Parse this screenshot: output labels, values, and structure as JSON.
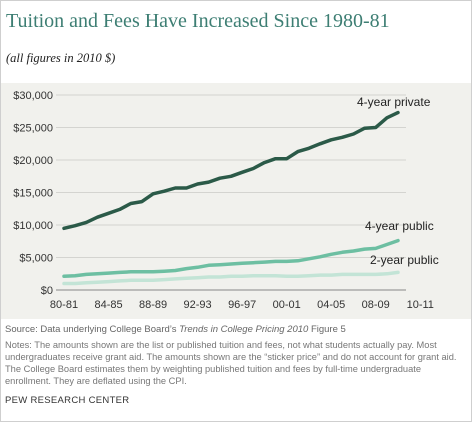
{
  "chart_data": {
    "type": "line",
    "title": "Tuition and Fees Have Increased Since 1980-81",
    "subtitle": "(all figures in 2010 $)",
    "xlabel": "",
    "ylabel": "",
    "x_tick_labels": [
      "80-81",
      "84-85",
      "88-89",
      "92-93",
      "96-97",
      "00-01",
      "04-05",
      "08-09",
      "10-11"
    ],
    "y_ticks": [
      0,
      5000,
      10000,
      15000,
      20000,
      25000,
      30000
    ],
    "y_tick_labels": [
      "$0",
      "$5,000",
      "$10,000",
      "$15,000",
      "$20,000",
      "$25,000",
      "$30,000"
    ],
    "ylim": [
      0,
      30000
    ],
    "grid": true,
    "series": [
      {
        "name": "4-year private",
        "color": "#2b5a48",
        "values": [
          9500,
          9900,
          10400,
          11200,
          11800,
          12400,
          13300,
          13600,
          14800,
          15200,
          15700,
          15700,
          16300,
          16600,
          17200,
          17500,
          18100,
          18700,
          19600,
          20200,
          20200,
          21300,
          21800,
          22500,
          23100,
          23500,
          24000,
          24900,
          25000,
          26500,
          27300
        ]
      },
      {
        "name": "4-year public",
        "color": "#6dbfa2",
        "values": [
          2100,
          2200,
          2400,
          2500,
          2600,
          2700,
          2800,
          2800,
          2800,
          2900,
          3000,
          3300,
          3500,
          3800,
          3900,
          4000,
          4100,
          4200,
          4300,
          4400,
          4400,
          4500,
          4800,
          5100,
          5500,
          5800,
          6000,
          6300,
          6400,
          7000,
          7600
        ]
      },
      {
        "name": "2-year public",
        "color": "#c3e4d6",
        "values": [
          1000,
          1000,
          1100,
          1200,
          1300,
          1400,
          1500,
          1500,
          1500,
          1600,
          1700,
          1800,
          1900,
          2000,
          2000,
          2100,
          2100,
          2200,
          2200,
          2200,
          2100,
          2100,
          2200,
          2300,
          2300,
          2400,
          2400,
          2400,
          2400,
          2500,
          2700
        ]
      }
    ]
  },
  "footer": {
    "source_prefix": "Source: Data underlying College Board’s ",
    "source_italic": "Trends in College Pricing 2010",
    "source_suffix": " Figure 5",
    "notes": "Notes: The amounts shown are the list or published tuition and fees, not what students actually pay. Most undergraduates receive grant aid. The amounts shown are the “sticker price” and do not account for grant aid. The College Board estimates them by weighting published tuition and fees by full-time undergraduate enrollment. They are deflated using the CPI.",
    "organization": "PEW RESEARCH CENTER"
  }
}
